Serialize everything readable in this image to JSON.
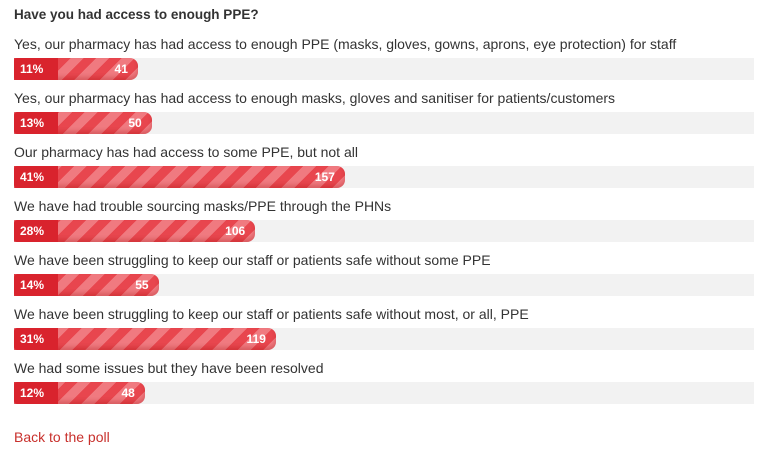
{
  "chart_data": {
    "type": "bar",
    "title": "Have you had access to enough PPE?",
    "categories": [
      "Yes, our pharmacy has had access to enough PPE (masks, gloves, gowns, aprons, eye protection) for staff",
      "Yes, our pharmacy has had access to enough masks, gloves and sanitiser for patients/customers",
      "Our pharmacy has had access to some PPE, but not all",
      "We have had trouble sourcing masks/PPE through the PHNs",
      "We have been struggling to keep our staff or patients safe without some PPE",
      "We have been struggling to keep our staff or patients safe without most, or all, PPE",
      "We had some issues but they have been resolved"
    ],
    "values": [
      11,
      13,
      41,
      28,
      14,
      31,
      12
    ],
    "value_labels": [
      "11%",
      "13%",
      "41%",
      "28%",
      "14%",
      "31%",
      "12%"
    ],
    "counts": [
      41,
      50,
      157,
      106,
      55,
      119,
      48
    ],
    "color": "#e0323b",
    "link": "Back to the poll"
  }
}
